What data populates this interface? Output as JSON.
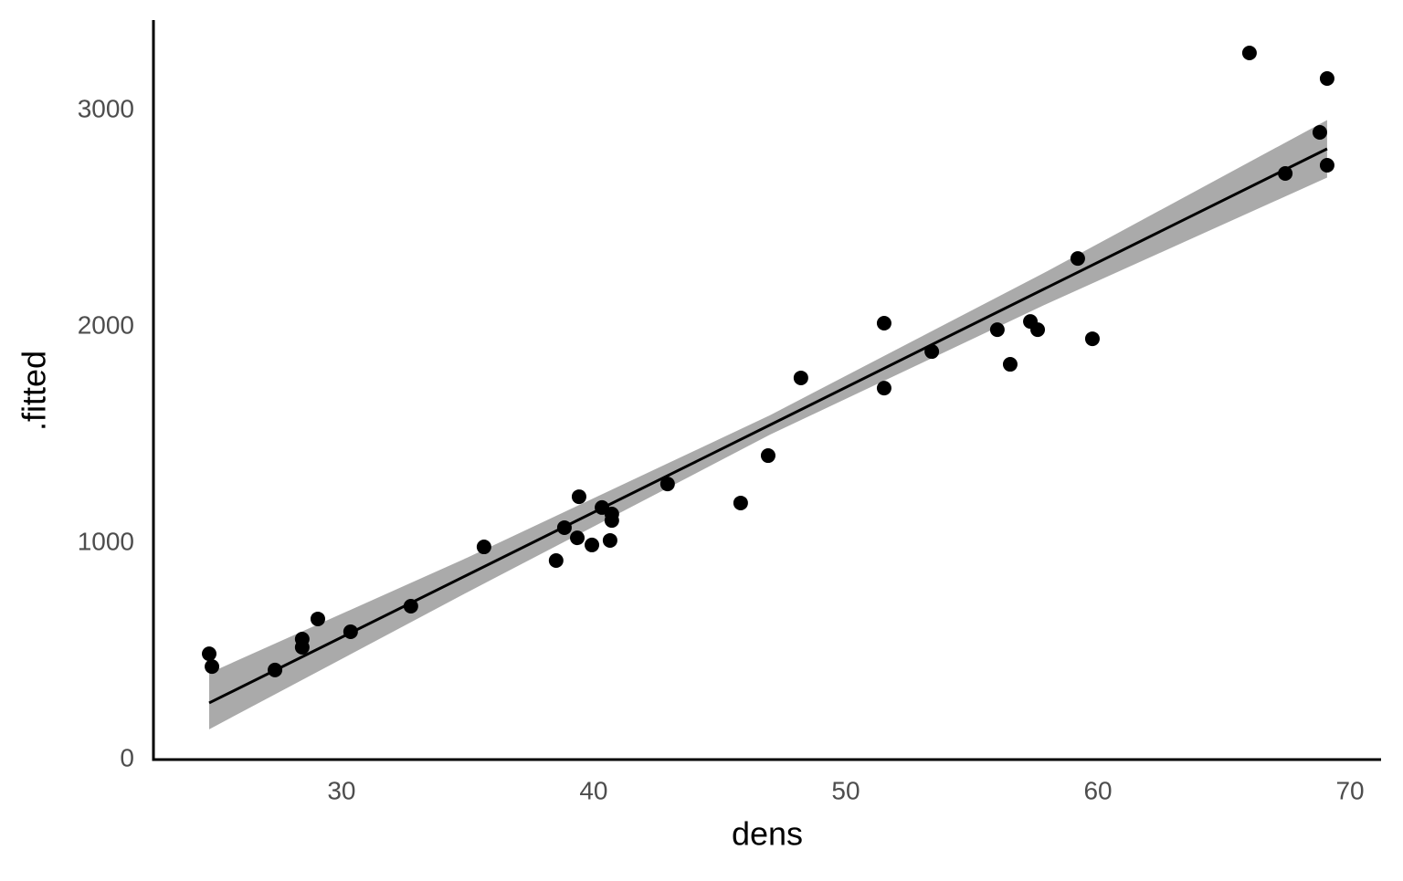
{
  "chart_data": {
    "type": "scatter",
    "x_label": "dens",
    "y_label": ".fitted",
    "points": {
      "x": [
        24.75,
        24.86,
        27.36,
        28.44,
        28.44,
        29.06,
        30.36,
        32.75,
        35.65,
        38.51,
        38.84,
        39.35,
        39.42,
        39.93,
        40.33,
        40.65,
        40.72,
        40.72,
        42.93,
        45.83,
        46.92,
        48.22,
        51.52,
        51.52,
        53.41,
        56.01,
        56.52,
        57.32,
        57.61,
        59.2,
        59.78,
        66.01,
        67.43,
        68.8,
        69.09,
        69.09
      ],
      "y": [
        489,
        430,
        414,
        519,
        557,
        650,
        591,
        709,
        983,
        920,
        1072,
        1025,
        1215,
        992,
        1165,
        1013,
        1135,
        1105,
        1274,
        1186,
        1405,
        1764,
        2017,
        1717,
        1886,
        1987,
        1827,
        2025,
        1987,
        2316,
        1945,
        3266,
        2709,
        2899,
        3148,
        2747
      ],
      "color": "#000000"
    },
    "fit": {
      "x": [
        24.75,
        35,
        47,
        58,
        69.09
      ],
      "y": [
        262,
        854,
        1547,
        2183,
        2823
      ],
      "lower": [
        140,
        774,
        1502,
        2108,
        2690
      ],
      "upper": [
        400,
        934,
        1592,
        2258,
        2956
      ],
      "color": "#000000",
      "band_color": "#aaaaaa"
    },
    "xlim": [
      22.54,
      71.23
    ],
    "ylim": [
      0,
      3418
    ],
    "xticks": [
      30,
      40,
      50,
      60,
      70
    ],
    "yticks": [
      0,
      1000,
      2000,
      3000
    ],
    "grid": false
  }
}
